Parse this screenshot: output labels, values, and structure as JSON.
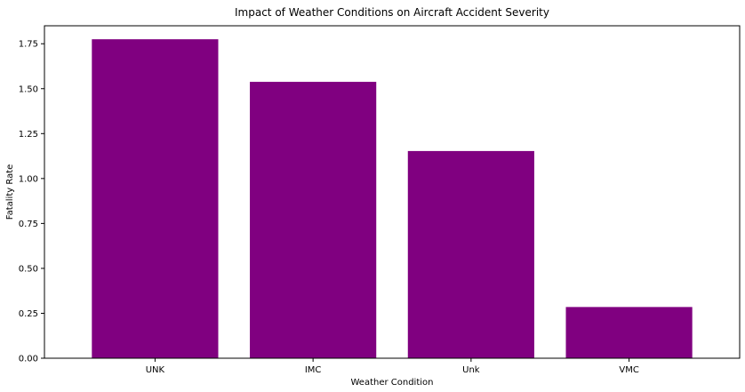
{
  "chart_data": {
    "type": "bar",
    "title": "Impact of Weather Conditions on Aircraft Accident Severity",
    "xlabel": "Weather Condition",
    "ylabel": "Fatality Rate",
    "categories": [
      "UNK",
      "IMC",
      "Unk",
      "VMC"
    ],
    "values": [
      1.775,
      1.538,
      1.153,
      0.285
    ],
    "ylim": [
      0,
      1.85
    ],
    "yticks": [
      "0.00",
      "0.25",
      "0.50",
      "0.75",
      "1.00",
      "1.25",
      "1.50",
      "1.75"
    ],
    "ytick_values": [
      0,
      0.25,
      0.5,
      0.75,
      1.0,
      1.25,
      1.5,
      1.75
    ],
    "bar_color": "#800080",
    "grid": false
  }
}
